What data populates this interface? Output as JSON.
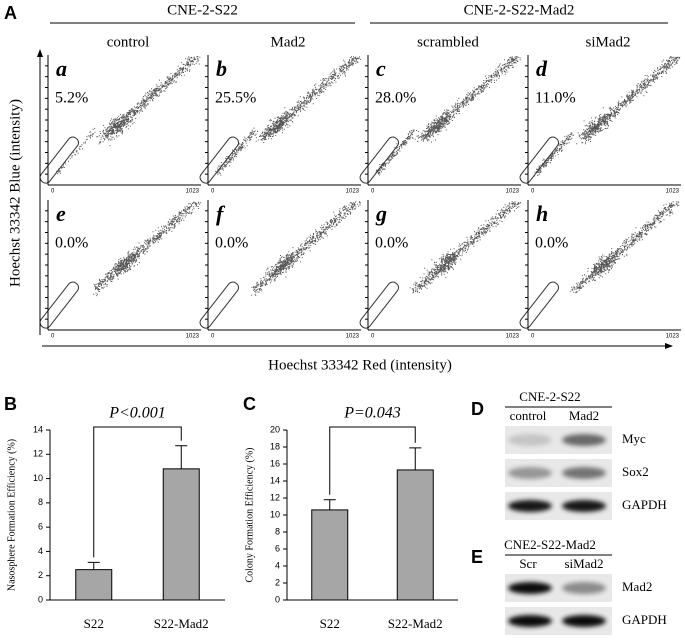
{
  "panel_a": {
    "letter": "A",
    "groups": [
      {
        "title": "CNE-2-S22",
        "conditions": [
          "control",
          "Mad2"
        ]
      },
      {
        "title": "CNE-2-S22-Mad2",
        "conditions": [
          "scrambled",
          "siMad2"
        ]
      }
    ],
    "plots": [
      {
        "letter": "a",
        "percent": "5.2%"
      },
      {
        "letter": "b",
        "percent": "25.5%"
      },
      {
        "letter": "c",
        "percent": "28.0%"
      },
      {
        "letter": "d",
        "percent": "11.0%"
      },
      {
        "letter": "e",
        "percent": "0.0%"
      },
      {
        "letter": "f",
        "percent": "0.0%"
      },
      {
        "letter": "g",
        "percent": "0.0%"
      },
      {
        "letter": "h",
        "percent": "0.0%"
      }
    ],
    "y_label": "Hoechst 33342 Blue (intensity)",
    "x_label": "Hoechst 33342 Red (intensity)",
    "axis_min": "0",
    "axis_max": "1023"
  },
  "chart_data": [
    {
      "type": "bar",
      "panel": "B",
      "y_label": "Nasosphere Formation Efficiency (%)",
      "categories": [
        "S22",
        "S22-Mad2"
      ],
      "values": [
        2.5,
        10.8
      ],
      "errors": [
        0.6,
        1.9
      ],
      "color": "#a6a6a6",
      "ylim": [
        0,
        14
      ],
      "yticks": [
        0,
        2,
        4,
        6,
        8,
        10,
        12,
        14
      ],
      "annotation": "P<0.001"
    },
    {
      "type": "bar",
      "panel": "C",
      "y_label": "Colony Formation Efficiency (%)",
      "categories": [
        "S22",
        "S22-Mad2"
      ],
      "values": [
        10.6,
        15.3
      ],
      "errors": [
        1.2,
        2.6
      ],
      "color": "#a6a6a6",
      "ylim": [
        0,
        20
      ],
      "yticks": [
        0,
        2,
        4,
        6,
        8,
        10,
        12,
        14,
        16,
        18,
        20
      ],
      "annotation": "P=0.043"
    }
  ],
  "panel_d": {
    "letter": "D",
    "title": "CNE-2-S22",
    "lanes": [
      "control",
      "Mad2"
    ],
    "bands": [
      "Myc",
      "Sox2",
      "GAPDH"
    ]
  },
  "panel_e": {
    "letter": "E",
    "title": "CNE2-S22-Mad2",
    "lanes": [
      "Scr",
      "siMad2"
    ],
    "bands": [
      "Mad2",
      "GAPDH"
    ]
  }
}
